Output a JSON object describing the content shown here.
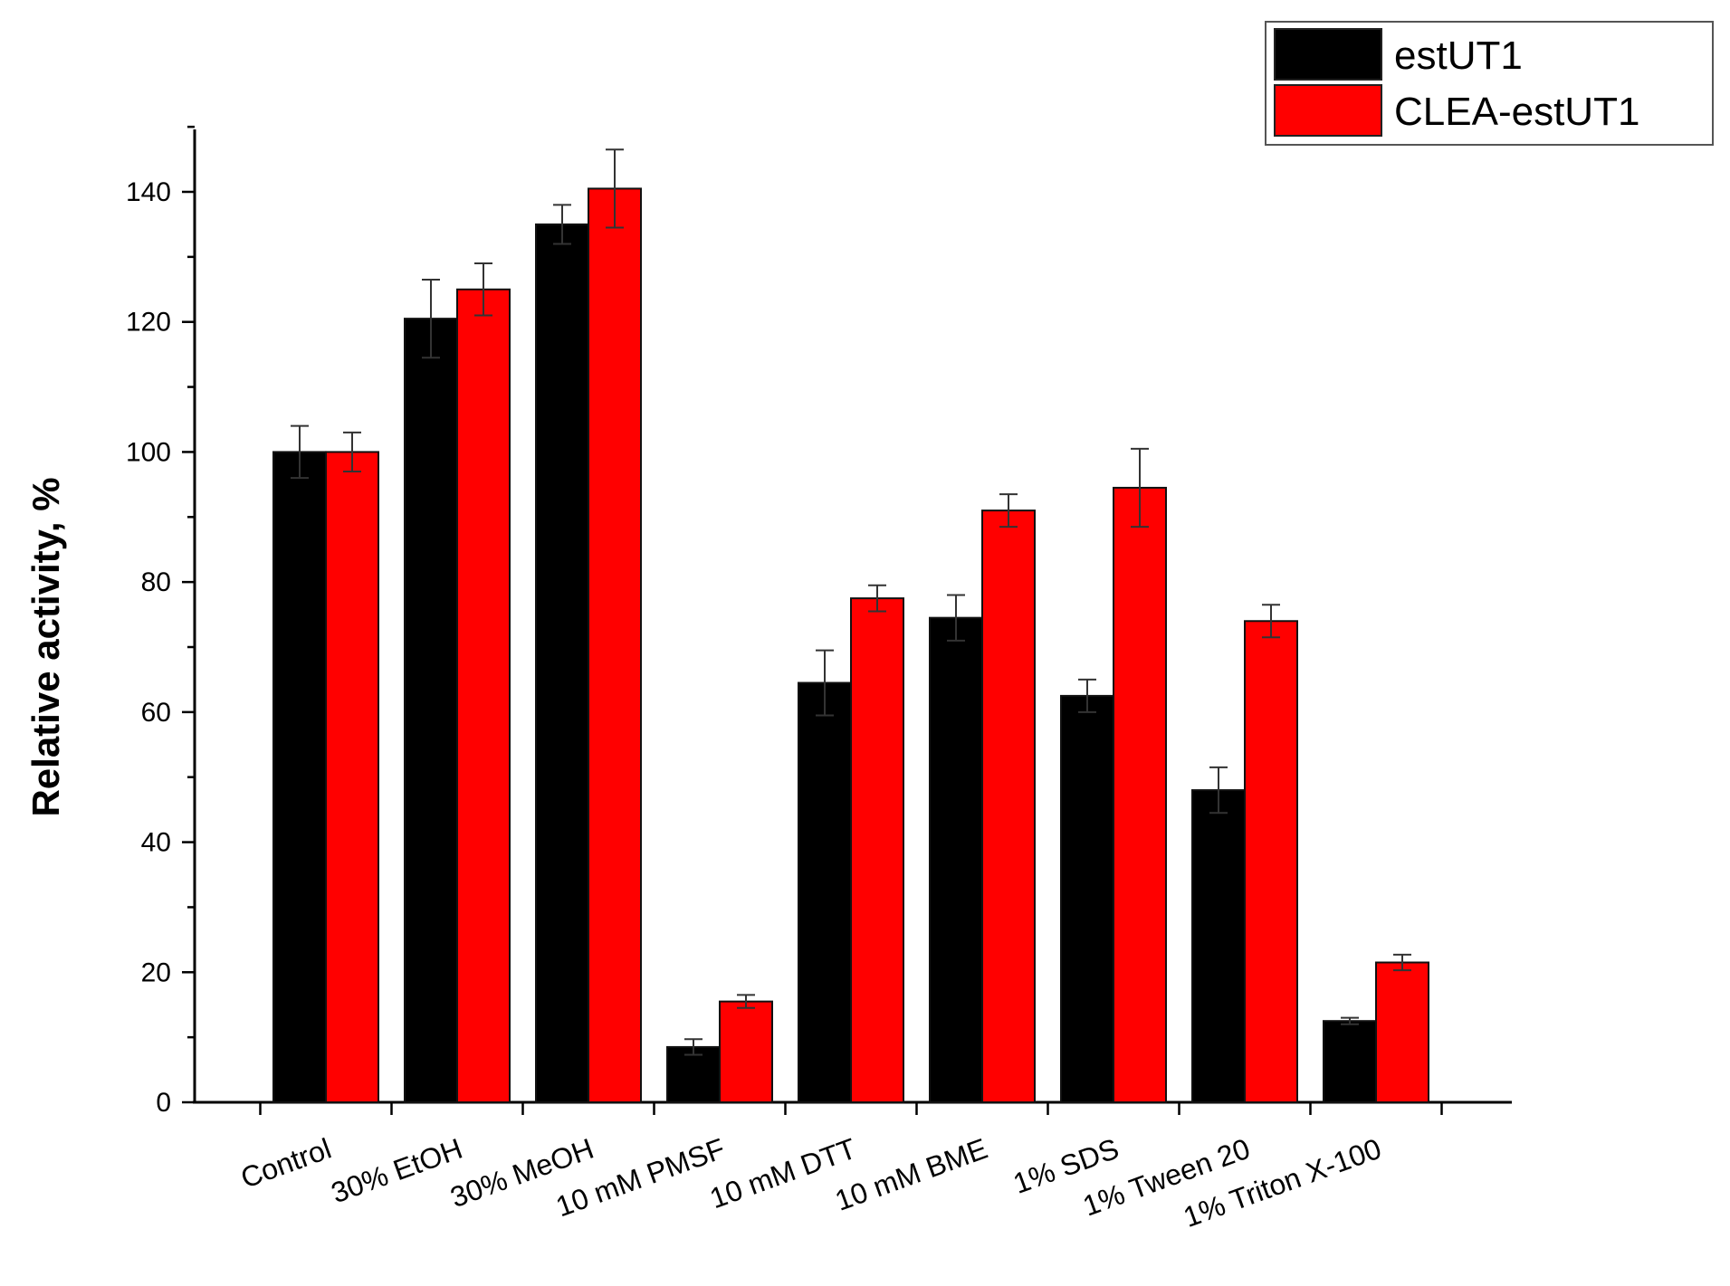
{
  "chart_data": {
    "type": "bar",
    "title": "",
    "xlabel": "",
    "ylabel": "Relative activity, %",
    "ylim": [
      0,
      150
    ],
    "yticks": [
      0,
      20,
      40,
      60,
      80,
      100,
      120,
      140
    ],
    "categories": [
      "Control",
      "30% EtOH",
      "30% MeOH",
      "10 mM PMSF",
      "10 mM DTT",
      "10 mM BME",
      "1% SDS",
      "1% Tween 20",
      "1% Triton X-100"
    ],
    "series": [
      {
        "name": "estUT1",
        "color": "#000000",
        "values": [
          100,
          120.5,
          135,
          8.5,
          64.5,
          74.5,
          62.5,
          48,
          12.5
        ],
        "errors": [
          4,
          6,
          3,
          1.2,
          5,
          3.5,
          2.5,
          3.5,
          0.5
        ]
      },
      {
        "name": "CLEA-estUT1",
        "color": "#ff0000",
        "values": [
          100,
          125,
          140.5,
          15.5,
          77.5,
          91,
          94.5,
          74,
          21.5
        ],
        "errors": [
          3,
          4,
          6,
          1,
          2,
          2.5,
          6,
          2.5,
          1.2
        ]
      }
    ],
    "grid": false,
    "legend": {
      "position": "top-right"
    }
  }
}
